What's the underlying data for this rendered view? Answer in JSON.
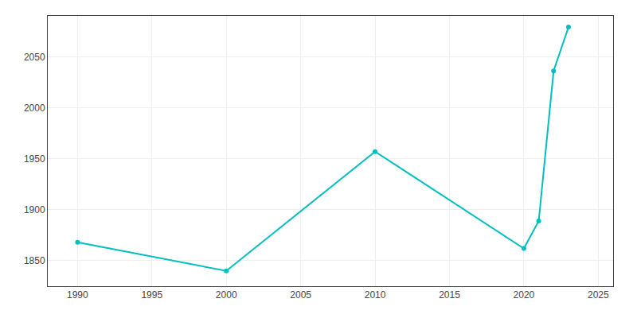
{
  "chart_data": {
    "type": "line",
    "x": [
      1990,
      2000,
      2010,
      2020,
      2021,
      2022,
      2023
    ],
    "values": [
      1868,
      1840,
      1957,
      1862,
      1889,
      2036,
      2079
    ],
    "color": "#00BFBF",
    "marker": "circle",
    "xlim": [
      1988,
      2026
    ],
    "ylim": [
      1825,
      2090
    ],
    "xticks": [
      1990,
      1995,
      2000,
      2005,
      2010,
      2015,
      2020,
      2025
    ],
    "yticks": [
      1850,
      1900,
      1950,
      2000,
      2050
    ],
    "grid": true
  }
}
